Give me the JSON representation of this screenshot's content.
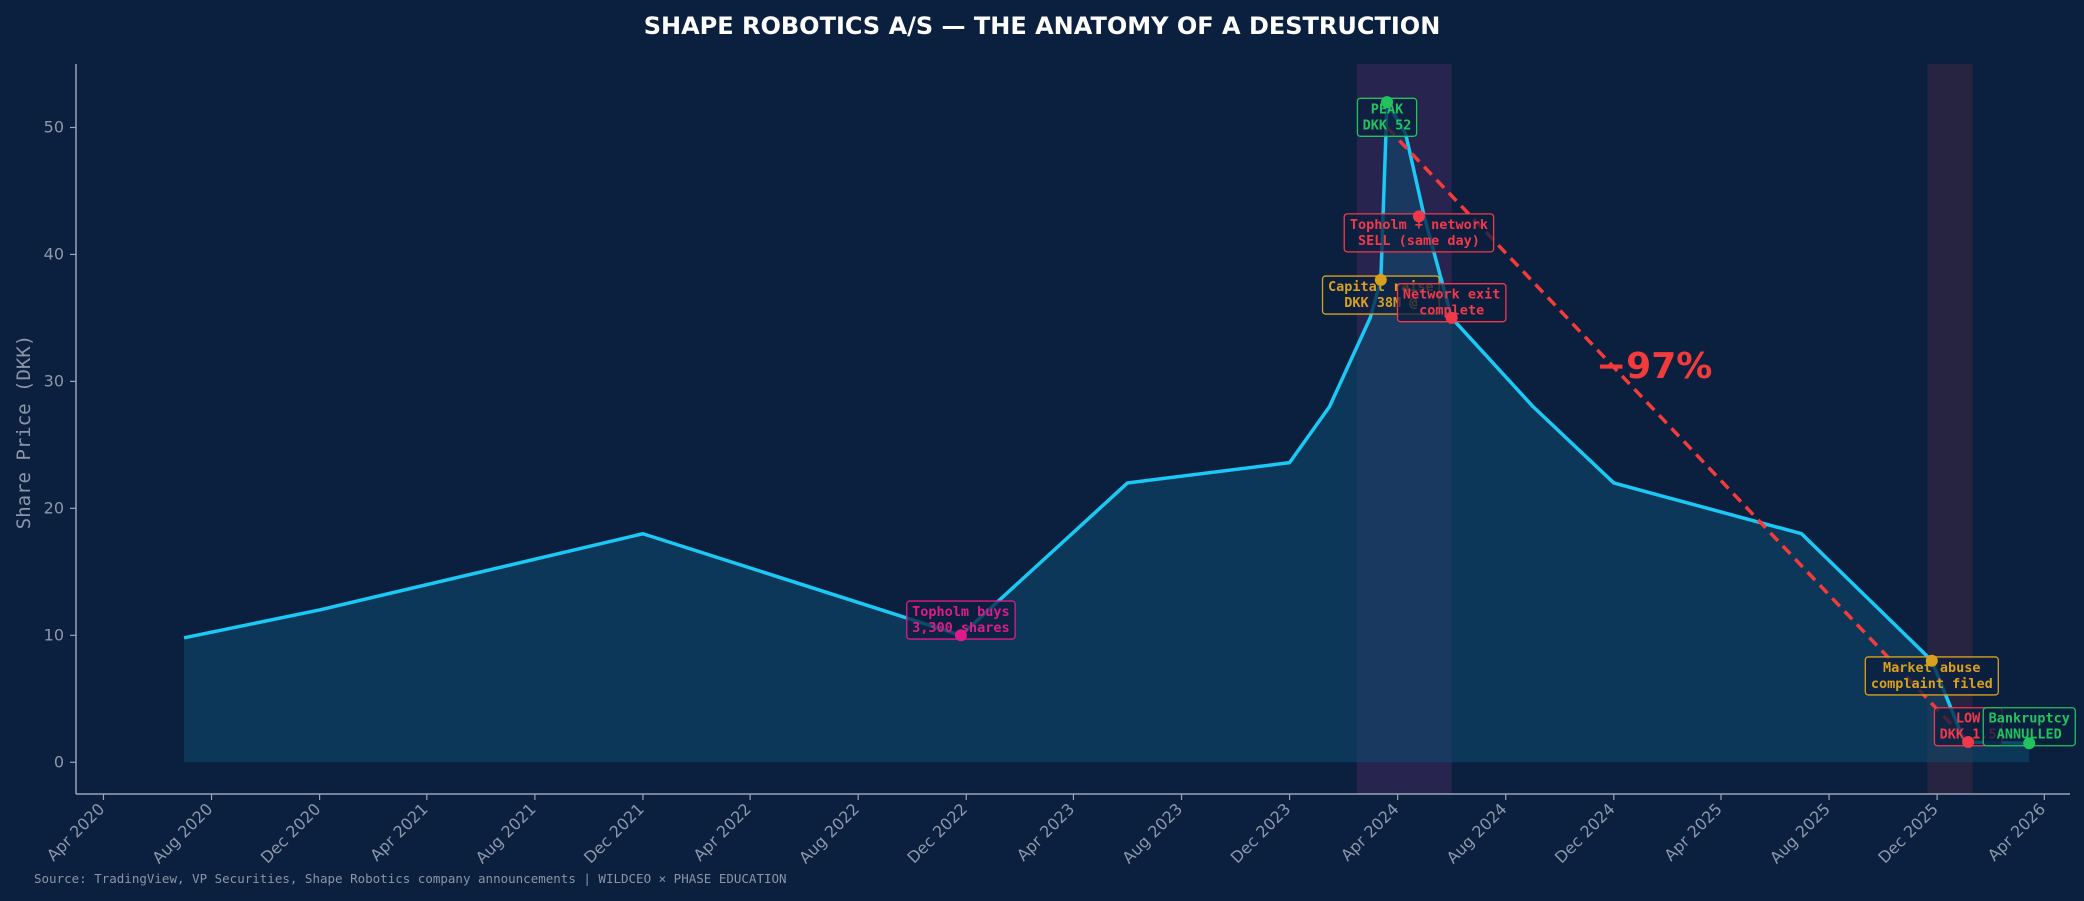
{
  "chart_data": {
    "type": "line",
    "title": "SHAPE ROBOTICS A/S — THE ANATOMY OF A DESTRUCTION",
    "xlabel": "",
    "ylabel": "Share Price (DKK)",
    "ylim": [
      -2.5,
      55
    ],
    "xlim": [
      "2020-03-01",
      "2026-04-30"
    ],
    "x_ticks": [
      "Apr 2020",
      "Aug 2020",
      "Dec 2020",
      "Apr 2021",
      "Aug 2021",
      "Dec 2021",
      "Apr 2022",
      "Aug 2022",
      "Dec 2022",
      "Apr 2023",
      "Aug 2023",
      "Dec 2023",
      "Apr 2024",
      "Aug 2024",
      "Dec 2024",
      "Apr 2025",
      "Aug 2025",
      "Dec 2025",
      "Apr 2026"
    ],
    "y_ticks": [
      0,
      10,
      20,
      30,
      40,
      50
    ],
    "grid": false,
    "source": "Source: TradingView, VP Securities, Shape Robotics company announcements | WILDCEO × PHASE EDUCATION",
    "series": [
      {
        "points": [
          [
            "2020-07-01",
            9.8
          ],
          [
            "2020-12-01",
            12
          ],
          [
            "2021-12-01",
            18
          ],
          [
            "2022-11-25",
            10
          ],
          [
            "2023-06-01",
            22
          ],
          [
            "2023-12-01",
            23.6
          ],
          [
            "2024-01-15",
            28
          ],
          [
            "2024-03-01",
            35
          ],
          [
            "2024-03-13",
            38
          ],
          [
            "2024-03-20",
            52
          ],
          [
            "2024-04-10",
            49.5
          ],
          [
            "2024-05-01",
            43
          ],
          [
            "2024-06-01",
            35
          ],
          [
            "2024-09-01",
            28
          ],
          [
            "2024-12-01",
            22
          ],
          [
            "2025-07-01",
            18
          ],
          [
            "2025-11-25",
            8
          ],
          [
            "2026-01-01",
            1.6
          ],
          [
            "2026-03-15",
            1.5
          ]
        ]
      }
    ],
    "color": "#1ac9f5",
    "shaded_periods": [
      {
        "start": "2024-02-15",
        "end": "2024-06-01",
        "color": "#4a2a66"
      },
      {
        "start": "2025-11-20",
        "end": "2026-01-10",
        "color": "#4a2a48"
      }
    ],
    "trend_line": {
      "from": [
        "2024-03-20",
        50
      ],
      "to": [
        "2026-01-05",
        1.6
      ],
      "label": "−97%",
      "color": "#f33b3b"
    },
    "annotations": [
      {
        "lines": [
          "PEAK",
          "DKK 52"
        ],
        "point": [
          "2024-03-20",
          52
        ],
        "color": "#22c35e",
        "box_center": [
          "2024-03-20",
          50.8
        ]
      },
      {
        "lines": [
          "Topholm + network",
          "SELL (same day)"
        ],
        "point": [
          "2024-04-25",
          43
        ],
        "color": "#f03a4c",
        "box_center": [
          "2024-04-25",
          41.7
        ]
      },
      {
        "lines": [
          "Capital raise",
          "DKK 38M @"
        ],
        "point": [
          "2024-03-13",
          38
        ],
        "color": "#d9a01e",
        "box_center": [
          "2024-03-13",
          36.8
        ]
      },
      {
        "lines": [
          "Network exit",
          "complete"
        ],
        "point": [
          "2024-06-01",
          35
        ],
        "color": "#f03a4c",
        "box_center": [
          "2024-06-01",
          36.2
        ]
      },
      {
        "lines": [
          "Topholm buys",
          "3,300 shares"
        ],
        "point": [
          "2022-11-25",
          10
        ],
        "color": "#e11a8c",
        "box_center": [
          "2022-11-25",
          11.2
        ]
      },
      {
        "lines": [
          "Market abuse",
          "complaint filed"
        ],
        "point": [
          "2025-11-25",
          8
        ],
        "color": "#d9a01e",
        "box_center": [
          "2025-11-25",
          6.8
        ]
      },
      {
        "lines": [
          "LOW",
          "DKK 1.5"
        ],
        "point": [
          "2026-01-05",
          1.6
        ],
        "color": "#f03a4c",
        "box_center": [
          "2026-01-05",
          2.8
        ]
      },
      {
        "lines": [
          "Bankruptcy",
          "ANNULLED"
        ],
        "point": [
          "2026-03-15",
          1.5
        ],
        "color": "#22c35e",
        "box_center": [
          "2026-03-15",
          2.8
        ]
      }
    ]
  }
}
